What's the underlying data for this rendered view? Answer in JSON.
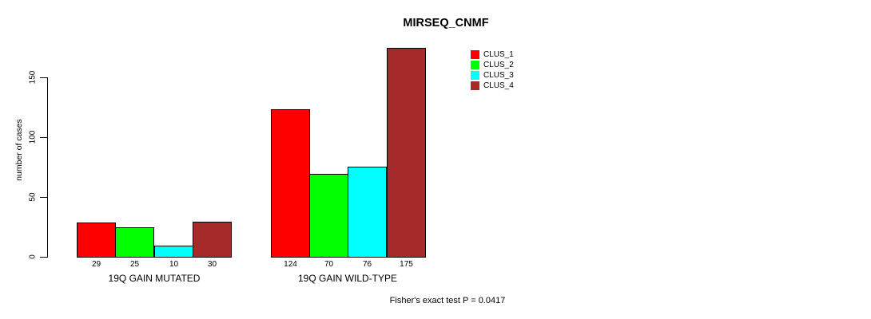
{
  "chart_data": {
    "type": "bar",
    "title": "MIRSEQ_CNMF",
    "ylabel": "number of cases",
    "xlabel": "",
    "ylim": [
      0,
      175
    ],
    "yticks": [
      0,
      50,
      100,
      150
    ],
    "grid": false,
    "legend_position": "top-right",
    "categories": [
      "19Q GAIN MUTATED",
      "19Q GAIN WILD-TYPE"
    ],
    "series": [
      {
        "name": "CLUS_1",
        "color": "#FF0000",
        "values": [
          29,
          124
        ]
      },
      {
        "name": "CLUS_2",
        "color": "#00FF00",
        "values": [
          25,
          70
        ]
      },
      {
        "name": "CLUS_3",
        "color": "#00FFFF",
        "values": [
          10,
          76
        ]
      },
      {
        "name": "CLUS_4",
        "color": "#A52A2A",
        "values": [
          30,
          175
        ]
      }
    ],
    "bar_value_labels": [
      [
        "29",
        "25",
        "10",
        "30"
      ],
      [
        "124",
        "70",
        "76",
        "175"
      ]
    ],
    "annotation": "Fisher's exact test P = 0.0417"
  },
  "colors": {
    "background": "#FFFFFF",
    "axis": "#000000",
    "text": "#000000"
  }
}
